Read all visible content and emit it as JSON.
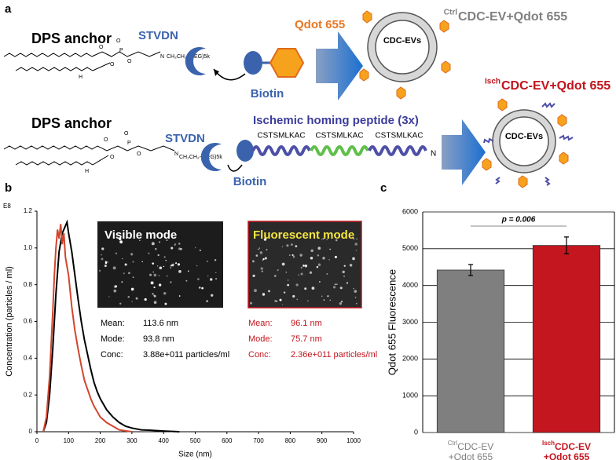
{
  "panels": [
    "a",
    "b",
    "c"
  ],
  "diagram": {
    "row1": {
      "anchor": "DPS anchor",
      "linker": "CH₂CH₂-(PEG)5k",
      "atoms": [
        "O",
        "O",
        "P",
        "O",
        "O",
        "H",
        "N"
      ],
      "streptavidin": "STVDN",
      "biotin": "Biotin",
      "qdot": "Qdot 655",
      "vesicle": "CDC-EVs",
      "product_superscript": "Ctrl",
      "product": "CDC-EV+Qdot 655"
    },
    "row2": {
      "anchor": "DPS anchor",
      "linker": "CH₂CH₂-(PEG)5k",
      "atoms": [
        "O",
        "O",
        "P",
        "O",
        "O",
        "H",
        "N"
      ],
      "streptavidin": "STVDN",
      "biotin": "Biotin",
      "peptide_title": "Ischemic homing peptide (3x)",
      "peptides": [
        "CSTSMLKAC",
        "CSTSMLKAC",
        "CSTSMLKAC"
      ],
      "terminus": "N",
      "vesicle": "CDC-EVs",
      "product_superscript": "Isch",
      "product": "CDC-EV+Qdot 655"
    }
  },
  "chart_data": [
    {
      "type": "line",
      "x_label": "Size (nm)",
      "y_label": "Concentration (particles / ml)",
      "y_multiplier": "E8",
      "xlim": [
        0,
        1000
      ],
      "xticks": [
        0,
        100,
        200,
        300,
        400,
        500,
        600,
        700,
        800,
        900,
        1000
      ],
      "ylim": [
        0,
        1.2
      ],
      "yticks": [
        0,
        0.2,
        0.4,
        0.6,
        0.8,
        {
          "value": 1,
          "label": "1.0"
        },
        1.2
      ],
      "series": [
        {
          "color": "#000000",
          "x": [
            20,
            30,
            40,
            50,
            60,
            70,
            80,
            90,
            95,
            100,
            110,
            120,
            130,
            140,
            150,
            160,
            170,
            180,
            190,
            200,
            220,
            240,
            260,
            280,
            300,
            330,
            360,
            400,
            450
          ],
          "values": [
            0,
            0.05,
            0.2,
            0.45,
            0.75,
            0.98,
            1.08,
            1.12,
            1.14,
            1.08,
            0.98,
            0.85,
            0.72,
            0.6,
            0.5,
            0.42,
            0.34,
            0.27,
            0.22,
            0.18,
            0.12,
            0.08,
            0.05,
            0.03,
            0.02,
            0.01,
            0.008,
            0.004,
            0
          ]
        },
        {
          "color": "#d2452c",
          "x": [
            20,
            30,
            40,
            50,
            55,
            60,
            65,
            70,
            75,
            80,
            85,
            90,
            100,
            110,
            120,
            130,
            140,
            150,
            160,
            170,
            180,
            200,
            220,
            240,
            260,
            280,
            300
          ],
          "values": [
            0,
            0.08,
            0.3,
            0.65,
            0.85,
            1.0,
            1.1,
            1.05,
            1.13,
            1.02,
            1.08,
            0.95,
            0.85,
            0.68,
            0.55,
            0.45,
            0.36,
            0.28,
            0.23,
            0.18,
            0.14,
            0.08,
            0.05,
            0.03,
            0.01,
            0.005,
            0
          ]
        }
      ],
      "insets": [
        {
          "title": "Visible mode",
          "rows": [
            [
              "Mean:",
              "113.6 nm"
            ],
            [
              "Mode:",
              "93.8 nm"
            ],
            [
              "Conc:",
              "3.88e+011 particles/ml"
            ]
          ]
        },
        {
          "title": "Fluorescent mode",
          "rows": [
            [
              "Mean:",
              "96.1 nm"
            ],
            [
              "Mode:",
              "75.7 nm"
            ],
            [
              "Conc:",
              "2.36e+011 particles/ml"
            ]
          ]
        }
      ]
    },
    {
      "type": "bar",
      "y_label": "Qdot 655 Fluorescence",
      "ylim": [
        0,
        6000
      ],
      "yticks": [
        0,
        1000,
        2000,
        3000,
        4000,
        5000,
        6000
      ],
      "grid": true,
      "category_superscripts": [
        "Ctrl",
        "Isch"
      ],
      "categories": [
        "CDC-EV",
        "CDC-EV"
      ],
      "category_second_lines": [
        "+Qdot 655",
        "+Qdot 655"
      ],
      "values": [
        4420,
        5090
      ],
      "errors": [
        150,
        230
      ],
      "colors": [
        "#7f7f7f",
        "#c3161f"
      ],
      "annotation": "p = 0.006"
    }
  ]
}
